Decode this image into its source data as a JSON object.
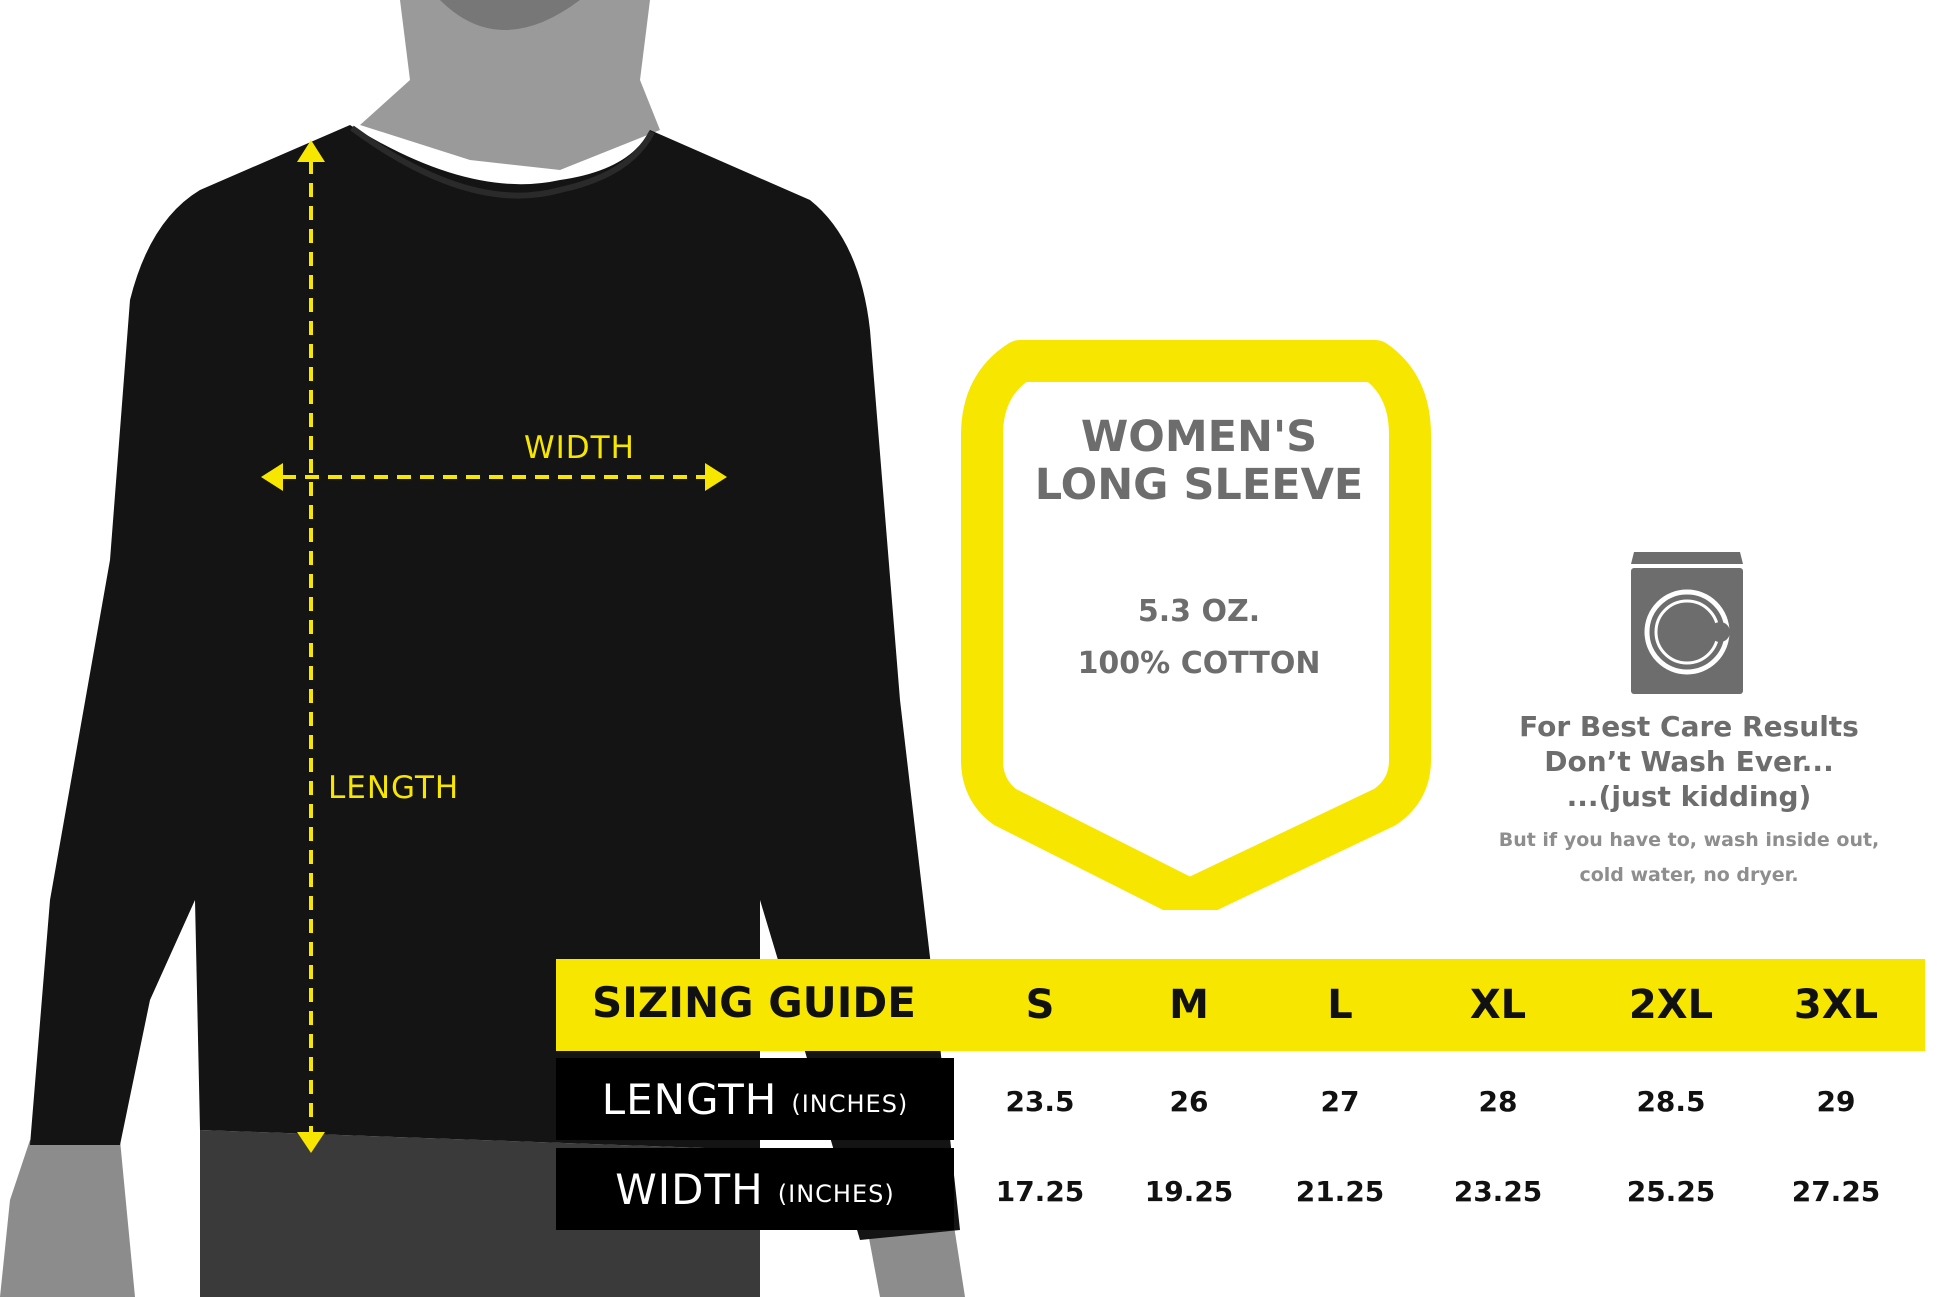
{
  "product": {
    "title_line1": "WOMEN'S",
    "title_line2": "LONG SLEEVE",
    "weight": "5.3 OZ.",
    "material": "100% COTTON"
  },
  "care": {
    "icon": "washing-machine-icon",
    "line1": "For Best Care Results",
    "line2": "Don’t Wash Ever...",
    "line3": "...(just kidding)",
    "note1": "But if you have to, wash inside out,",
    "note2": "cold water, no dryer."
  },
  "measure_labels": {
    "width": "WIDTH",
    "length": "LENGTH"
  },
  "sizing": {
    "title": "SIZING GUIDE",
    "sizes": [
      "S",
      "M",
      "L",
      "XL",
      "2XL",
      "3XL"
    ],
    "rows": [
      {
        "label": "LENGTH",
        "unit": "(INCHES)",
        "values": [
          "23.5",
          "26",
          "27",
          "28",
          "28.5",
          "29"
        ]
      },
      {
        "label": "WIDTH",
        "unit": "(INCHES)",
        "values": [
          "17.25",
          "19.25",
          "21.25",
          "23.25",
          "25.25",
          "27.25"
        ]
      }
    ]
  },
  "colors": {
    "accent": "#f7e600",
    "text_gray": "#6d6d6d",
    "shirt": "#141414"
  }
}
